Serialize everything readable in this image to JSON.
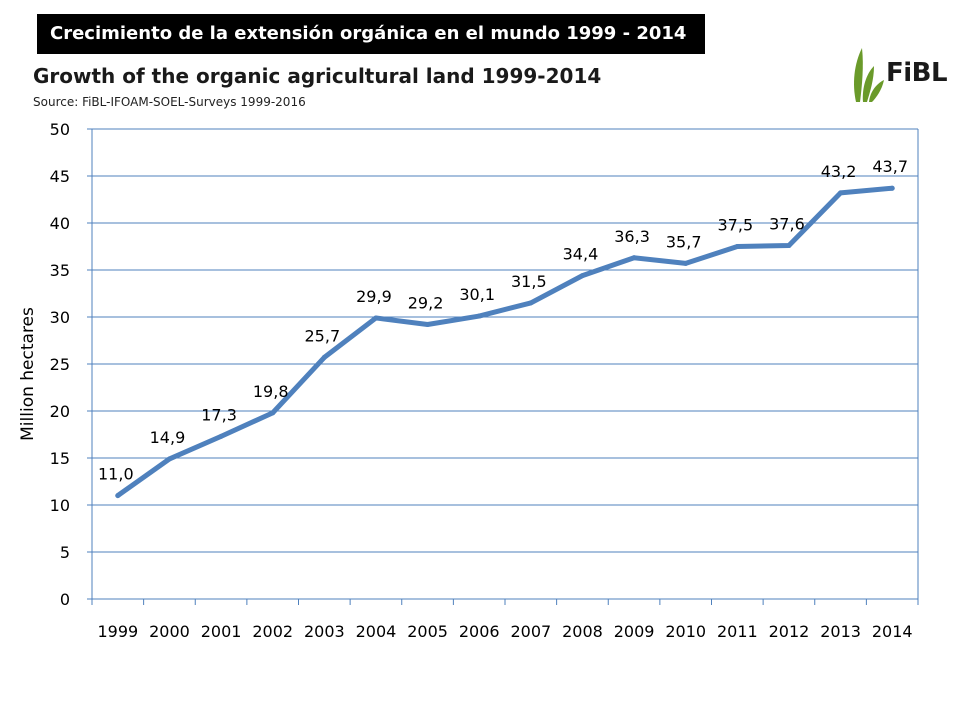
{
  "banner": "Crecimiento de la extensión orgánica en el mundo 1999 - 2014",
  "logo": {
    "text": "FiBL",
    "icon": "fibl-leaf-logo",
    "accent": "#6a9a2a"
  },
  "chart_data": {
    "type": "line",
    "title": "Growth of the organic agricultural land 1999-2014",
    "subtitle": "Source: FiBL-IFOAM-SOEL-Surveys 1999-2016",
    "xlabel": "",
    "ylabel": "Million hectares",
    "categories": [
      "1999",
      "2000",
      "2001",
      "2002",
      "2003",
      "2004",
      "2005",
      "2006",
      "2007",
      "2008",
      "2009",
      "2010",
      "2011",
      "2012",
      "2013",
      "2014"
    ],
    "values": [
      11.0,
      14.9,
      17.3,
      19.8,
      25.7,
      29.9,
      29.2,
      30.1,
      31.5,
      34.4,
      36.3,
      35.7,
      37.5,
      37.6,
      43.2,
      43.7
    ],
    "data_labels": [
      "11,0",
      "14,9",
      "17,3",
      "19,8",
      "25,7",
      "29,9",
      "29,2",
      "30,1",
      "31,5",
      "34,4",
      "36,3",
      "35,7",
      "37,5",
      "37,6",
      "43,2",
      "43,7"
    ],
    "ylim": [
      0,
      50
    ],
    "yticks": [
      0,
      5,
      10,
      15,
      20,
      25,
      30,
      35,
      40,
      45,
      50
    ],
    "grid": true,
    "legend": "none",
    "line_color": "#4f81bd",
    "grid_color": "#4f81bd"
  }
}
